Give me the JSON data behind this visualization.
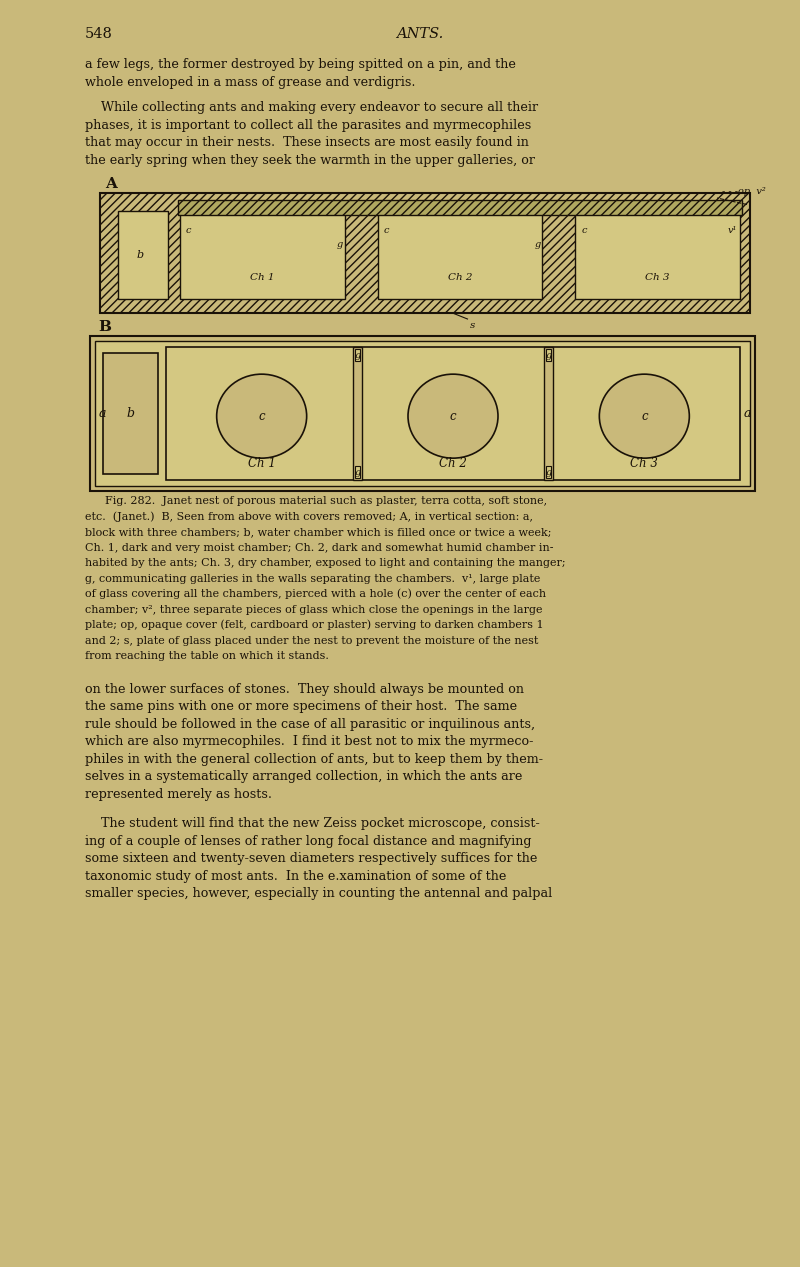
{
  "bg_color": "#c9b97a",
  "page_width": 8.0,
  "page_height": 12.67,
  "text_color": "#1a1208",
  "line_color": "#1a1208",
  "header_page": "548",
  "header_title": "ANTS.",
  "para1_lines": [
    "a few legs, the former destroyed by being spitted on a pin, and the",
    "whole enveloped in a mass of grease and verdigris."
  ],
  "para2_lines": [
    "    While collecting ants and making every endeavor to secure all their",
    "phases, it is important to collect all the parasites and myrmecophiles",
    "that may occur in their nests.  These insects are most easily found in",
    "the early spring when they seek the warmth in the upper galleries, or"
  ],
  "fig_caption_lines": [
    "Fig. 282.  Janet nest of porous material such as plaster, terra cotta, soft stone,",
    "etc.  (Janet.)  B, Seen from above with covers removed; A, in vertical section: a,",
    "block with three chambers; b, water chamber which is filled once or twice a week;",
    "Ch. 1, dark and very moist chamber; Ch. 2, dark and somewhat humid chamber in-",
    "habited by the ants; Ch. 3, dry chamber, exposed to light and containing the manger;",
    "g, communicating galleries in the walls separating the chambers.  v¹, large plate",
    "of glass covering all the chambers, pierced with a hole (c) over the center of each",
    "chamber; v², three separate pieces of glass which close the openings in the large",
    "plate; op, opaque cover (felt, cardboard or plaster) serving to darken chambers 1",
    "and 2; s, plate of glass placed under the nest to prevent the moisture of the nest",
    "from reaching the table on which it stands."
  ],
  "para3_lines": [
    "on the lower surfaces of stones.  They should always be mounted on",
    "the same pins with one or more specimens of their host.  The same",
    "rule should be followed in the case of all parasitic or inquilinous ants,",
    "which are also myrmecophiles.  I find it best not to mix the myrmeco-",
    "philes in with the general collection of ants, but to keep them by them-",
    "selves in a systematically arranged collection, in which the ants are",
    "represented merely as hosts."
  ],
  "para4_lines": [
    "    The student will find that the new Zeiss pocket microscope, consist-",
    "ing of a couple of lenses of rather long focal distance and magnifying",
    "some sixteen and twenty-seven diameters respectively suffices for the",
    "taxonomic study of most ants.  In the e.xamination of some of the",
    "smaller species, however, especially in counting the antennal and palpal"
  ],
  "hatch_color": "#1a1208",
  "chamber_fill": "#d4c882",
  "outer_fill": "#c9b97a"
}
